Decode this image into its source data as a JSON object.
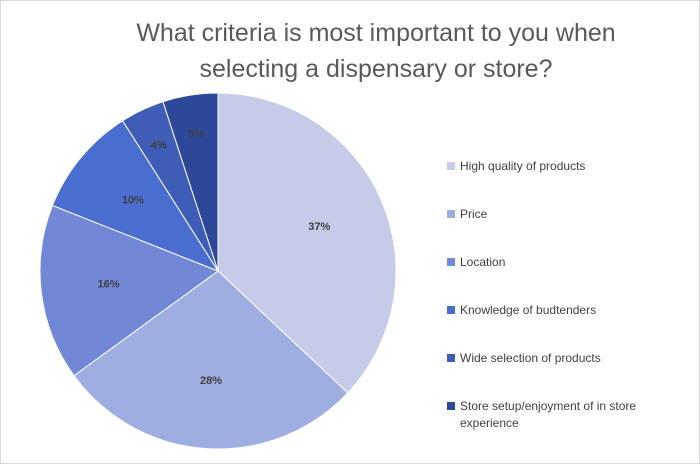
{
  "chart_data": {
    "type": "pie",
    "title": "What criteria is most important to you when selecting a dispensary or store?",
    "categories": [
      "High quality of products",
      "Price",
      "Location",
      "Knowledge of budtenders",
      "Wide selection of products",
      "Store setup/enjoyment of in store experience"
    ],
    "values": [
      37,
      28,
      16,
      10,
      4,
      5
    ],
    "value_labels": [
      "37%",
      "28%",
      "16%",
      "10%",
      "4%",
      "5%"
    ],
    "colors": [
      "#c5cbe9",
      "#9eaee0",
      "#7088d5",
      "#4a6ecf",
      "#3e5db6",
      "#2d4898"
    ],
    "legend": "right"
  }
}
